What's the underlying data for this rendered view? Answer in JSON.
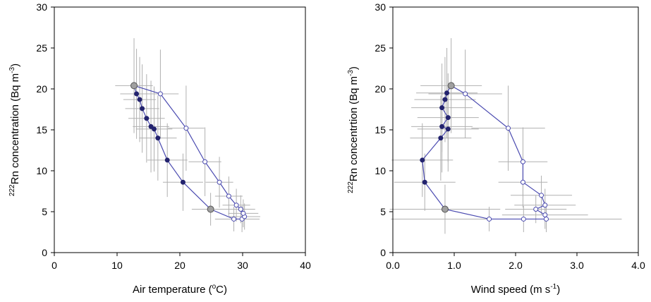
{
  "chart_data": [
    {
      "type": "scatter",
      "xlabel_parts": [
        "Air temperature (",
        "o",
        "C)"
      ],
      "ylabel_parts": [
        "222",
        "Rn concentration (Bq m",
        "-3",
        ")"
      ],
      "xlim": [
        0,
        40
      ],
      "ylim": [
        0,
        30
      ],
      "xticks": [
        0,
        10,
        20,
        30,
        40
      ],
      "xtick_labels": [
        "0",
        "10",
        "20",
        "30",
        "40"
      ],
      "yticks": [
        0,
        5,
        10,
        15,
        20,
        25,
        30
      ],
      "ytick_labels": [
        "0",
        "5",
        "10",
        "15",
        "20",
        "25",
        "30"
      ],
      "line_color": "#4a4ab0",
      "filled_color": "#23236e",
      "open_color": "#ffffff",
      "highlight_color": "#a0a0a0",
      "errorbar_color": "#b0b0b0",
      "points": [
        {
          "x": 12.7,
          "y": 20.4,
          "xe": 3.0,
          "ye": 5.8,
          "style": "highlight"
        },
        {
          "x": 13.1,
          "y": 19.4,
          "xe": 2.6,
          "ye": 5.5,
          "style": "filled"
        },
        {
          "x": 13.6,
          "y": 18.7,
          "xe": 2.6,
          "ye": 5.2,
          "style": "filled"
        },
        {
          "x": 14.0,
          "y": 17.6,
          "xe": 2.7,
          "ye": 5.4,
          "style": "filled"
        },
        {
          "x": 14.7,
          "y": 16.4,
          "xe": 2.9,
          "ye": 5.4,
          "style": "filled"
        },
        {
          "x": 15.4,
          "y": 15.4,
          "xe": 2.9,
          "ye": 5.6,
          "style": "filled"
        },
        {
          "x": 15.9,
          "y": 15.1,
          "xe": 2.9,
          "ye": 5.2,
          "style": "filled"
        },
        {
          "x": 16.5,
          "y": 14.0,
          "xe": 3.0,
          "ye": 5.2,
          "style": "filled"
        },
        {
          "x": 18.0,
          "y": 11.3,
          "xe": 3.2,
          "ye": 4.5,
          "style": "filled"
        },
        {
          "x": 20.5,
          "y": 8.6,
          "xe": 3.2,
          "ye": 3.5,
          "style": "filled"
        },
        {
          "x": 24.9,
          "y": 5.3,
          "xe": 3.0,
          "ye": 2.0,
          "style": "highlight"
        },
        {
          "x": 28.6,
          "y": 4.1,
          "xe": 3.0,
          "ye": 1.5,
          "style": "open"
        },
        {
          "x": 29.9,
          "y": 4.1,
          "xe": 2.8,
          "ye": 1.6,
          "style": "open"
        },
        {
          "x": 30.3,
          "y": 4.4,
          "xe": 2.5,
          "ye": 1.6,
          "style": "open"
        },
        {
          "x": 30.1,
          "y": 4.8,
          "xe": 2.4,
          "ye": 1.7,
          "style": "open"
        },
        {
          "x": 29.7,
          "y": 5.3,
          "xe": 2.3,
          "ye": 1.7,
          "style": "open"
        },
        {
          "x": 29.0,
          "y": 5.8,
          "xe": 2.2,
          "ye": 2.0,
          "style": "open"
        },
        {
          "x": 27.8,
          "y": 6.9,
          "xe": 2.2,
          "ye": 2.4,
          "style": "open"
        },
        {
          "x": 26.3,
          "y": 8.6,
          "xe": 2.2,
          "ye": 3.1,
          "style": "open"
        },
        {
          "x": 24.0,
          "y": 11.1,
          "xe": 2.6,
          "ye": 4.2,
          "style": "open"
        },
        {
          "x": 21.0,
          "y": 15.2,
          "xe": 2.9,
          "ye": 5.2,
          "style": "open"
        },
        {
          "x": 16.9,
          "y": 19.4,
          "xe": 2.9,
          "ye": 5.4,
          "style": "open"
        },
        {
          "x": 12.7,
          "y": 20.4,
          "xe": 0,
          "ye": 0,
          "style": "highlight"
        }
      ]
    },
    {
      "type": "scatter",
      "xlabel_parts": [
        "Wind speed (m s",
        "-1",
        ")"
      ],
      "ylabel_parts": [
        "222",
        "Rn concentrtion (Bq m",
        "-3",
        ")"
      ],
      "xlim": [
        0,
        4
      ],
      "ylim": [
        0,
        30
      ],
      "xticks": [
        0,
        1,
        2,
        3,
        4
      ],
      "xtick_labels": [
        "0.0",
        "1.0",
        "2.0",
        "3.0",
        "4.0"
      ],
      "yticks": [
        0,
        5,
        10,
        15,
        20,
        25,
        30
      ],
      "ytick_labels": [
        "0",
        "5",
        "10",
        "15",
        "20",
        "25",
        "30"
      ],
      "line_color": "#4a4ab0",
      "filled_color": "#23236e",
      "open_color": "#ffffff",
      "highlight_color": "#a0a0a0",
      "errorbar_color": "#b0b0b0",
      "points": [
        {
          "x": 0.95,
          "y": 20.4,
          "xe": 0.5,
          "ye": 5.8,
          "style": "highlight"
        },
        {
          "x": 0.88,
          "y": 19.5,
          "xe": 0.5,
          "ye": 5.5,
          "style": "filled"
        },
        {
          "x": 0.85,
          "y": 18.7,
          "xe": 0.5,
          "ye": 5.2,
          "style": "filled"
        },
        {
          "x": 0.8,
          "y": 17.7,
          "xe": 0.5,
          "ye": 5.4,
          "style": "filled"
        },
        {
          "x": 0.9,
          "y": 16.5,
          "xe": 0.5,
          "ye": 5.4,
          "style": "filled"
        },
        {
          "x": 0.8,
          "y": 15.4,
          "xe": 0.5,
          "ye": 5.6,
          "style": "filled"
        },
        {
          "x": 0.9,
          "y": 15.1,
          "xe": 0.5,
          "ye": 5.2,
          "style": "filled"
        },
        {
          "x": 0.78,
          "y": 14.0,
          "xe": 0.5,
          "ye": 5.2,
          "style": "filled"
        },
        {
          "x": 0.48,
          "y": 11.3,
          "xe": 0.5,
          "ye": 4.5,
          "style": "filled"
        },
        {
          "x": 0.52,
          "y": 8.6,
          "xe": 0.5,
          "ye": 3.5,
          "style": "filled"
        },
        {
          "x": 0.85,
          "y": 5.3,
          "xe": 0.9,
          "ye": 3.0,
          "style": "highlight"
        },
        {
          "x": 1.57,
          "y": 4.1,
          "xe": 1.6,
          "ye": 1.5,
          "style": "open"
        },
        {
          "x": 2.13,
          "y": 4.1,
          "xe": 1.6,
          "ye": 1.6,
          "style": "open"
        },
        {
          "x": 2.5,
          "y": 4.1,
          "xe": 1.2,
          "ye": 1.6,
          "style": "open"
        },
        {
          "x": 2.48,
          "y": 4.6,
          "xe": 0.7,
          "ye": 1.7,
          "style": "open"
        },
        {
          "x": 2.33,
          "y": 5.3,
          "xe": 0.5,
          "ye": 1.7,
          "style": "open"
        },
        {
          "x": 2.48,
          "y": 5.8,
          "xe": 0.5,
          "ye": 2.0,
          "style": "open"
        },
        {
          "x": 2.42,
          "y": 7.0,
          "xe": 0.5,
          "ye": 2.4,
          "style": "open"
        },
        {
          "x": 2.12,
          "y": 8.6,
          "xe": 0.4,
          "ye": 3.1,
          "style": "open"
        },
        {
          "x": 2.12,
          "y": 11.1,
          "xe": 0.4,
          "ye": 4.2,
          "style": "open"
        },
        {
          "x": 1.88,
          "y": 15.2,
          "xe": 0.6,
          "ye": 5.2,
          "style": "open"
        },
        {
          "x": 1.18,
          "y": 19.4,
          "xe": 0.6,
          "ye": 5.4,
          "style": "open"
        },
        {
          "x": 0.95,
          "y": 20.4,
          "xe": 0,
          "ye": 0,
          "style": "highlight"
        }
      ]
    }
  ]
}
